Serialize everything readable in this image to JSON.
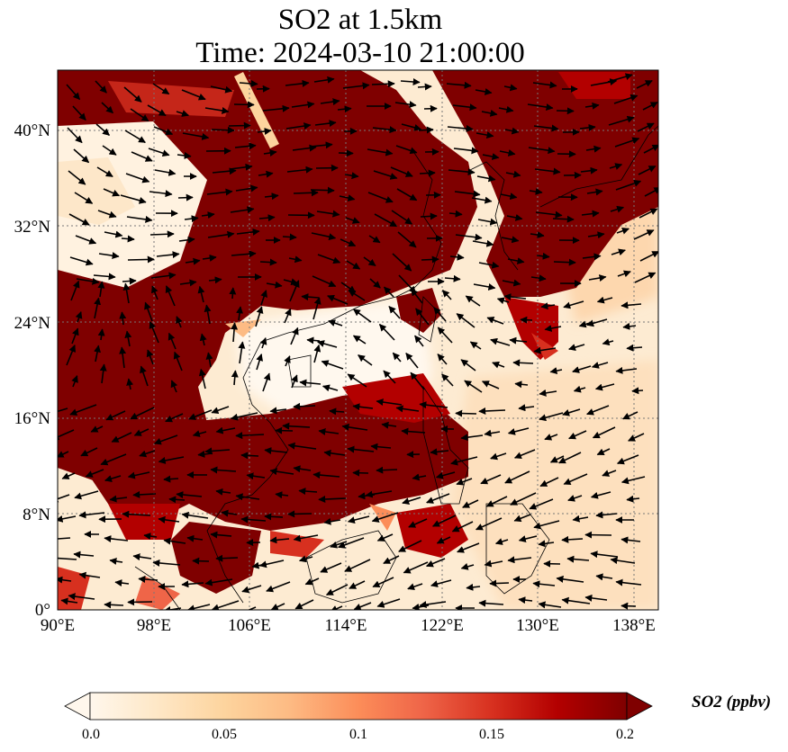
{
  "title": {
    "line1": "SO2 at 1.5km",
    "line2": "Time: 2024-03-10 21:00:00"
  },
  "map": {
    "lon_ticks": [
      "90°E",
      "98°E",
      "106°E",
      "114°E",
      "122°E",
      "130°E",
      "138°E"
    ],
    "lat_ticks": [
      "0°",
      "8°N",
      "16°N",
      "24°N",
      "32°N",
      "40°N"
    ],
    "lon_range": [
      90,
      140
    ],
    "lat_range": [
      0,
      45
    ],
    "gridlines": true
  },
  "colorbar": {
    "label": "SO2 (ppbv)",
    "ticks": [
      "0.0",
      "0.05",
      "0.1",
      "0.15",
      "0.2"
    ],
    "colormap": "OrRd",
    "colors": [
      "#fff7ec",
      "#fee8c8",
      "#fdd49e",
      "#fdbb84",
      "#fc8d59",
      "#ef6548",
      "#d7301f",
      "#b30000",
      "#7f0000"
    ],
    "extend": "both"
  }
}
